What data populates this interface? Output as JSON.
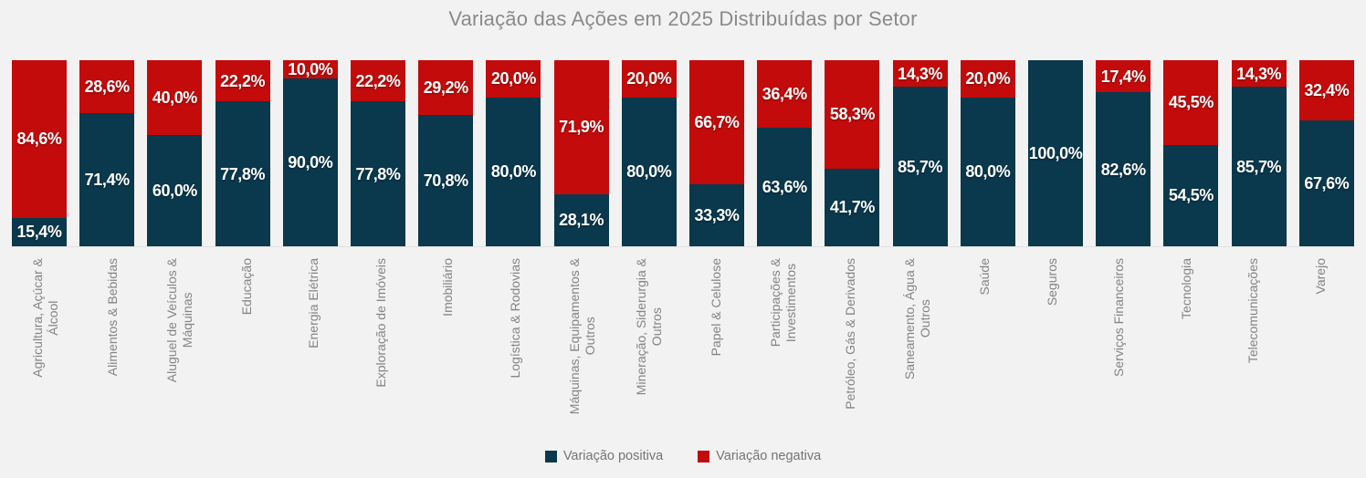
{
  "title": "Variação das Ações em 2025 Distribuídas por Setor",
  "colors": {
    "background": "#f2f2f2",
    "positive": "#0a384c",
    "negative": "#c30b0b",
    "title_text": "#8a8a8a",
    "axis_label_text": "#848484",
    "bar_label_text": "#ffffff",
    "legend_text": "#757575",
    "axis_line": "#e0e0e0"
  },
  "legend": {
    "position": "bottom",
    "items": [
      {
        "label": "Variação positiva",
        "color": "#0a384c"
      },
      {
        "label": "Variação negativa",
        "color": "#c30b0b"
      }
    ]
  },
  "chart_data": {
    "type": "bar",
    "subtype": "stacked-100-percent-column",
    "title": "Variação das Ações em 2025 Distribuídas por Setor",
    "xlabel": "",
    "ylabel": "",
    "ylim": [
      0,
      100
    ],
    "grid": false,
    "legend_position": "bottom",
    "value_format": "pt-BR percent, one decimal",
    "categories": [
      "Agricultura, Açúcar & Álcool",
      "Alimentos & Bebidas",
      "Aluguel de Veículos & Máquinas",
      "Educação",
      "Energia Elétrica",
      "Exploração de Imóveis",
      "Imobiliário",
      "Logística & Rodovias",
      "Máquinas, Equipamentos & Outros",
      "Mineração, Siderurgia & Outros",
      "Papel & Celulose",
      "Participações & Investimentos",
      "Petróleo, Gás & Derivados",
      "Saneamento, Água & Outros",
      "Saúde",
      "Seguros",
      "Serviços Financeiros",
      "Tecnologia",
      "Telecomunicações",
      "Varejo"
    ],
    "category_display": [
      "Agricultura, Açúcar &\nÁlcool",
      "Alimentos & Bebidas",
      "Aluguel de Veículos &\nMáquinas",
      "Educação",
      "Energia Elétrica",
      "Exploração de Imóveis",
      "Imobiliário",
      "Logística & Rodovias",
      "Máquinas, Equipamentos &\nOutros",
      "Mineração, Siderurgia &\nOutros",
      "Papel & Celulose",
      "Participações &\nInvestimentos",
      "Petróleo, Gás & Derivados",
      "Saneamento, Água &\nOutros",
      "Saúde",
      "Seguros",
      "Serviços Financeiros",
      "Tecnologia",
      "Telecomunicações",
      "Varejo"
    ],
    "series": [
      {
        "name": "Variação positiva",
        "color": "#0a384c",
        "values": [
          15.4,
          71.4,
          60.0,
          77.8,
          90.0,
          77.8,
          70.8,
          80.0,
          28.1,
          80.0,
          33.3,
          63.6,
          41.7,
          85.7,
          80.0,
          100.0,
          82.6,
          54.5,
          85.7,
          67.6
        ],
        "labels": [
          "15,4%",
          "71,4%",
          "60,0%",
          "77,8%",
          "90,0%",
          "77,8%",
          "70,8%",
          "80,0%",
          "28,1%",
          "80,0%",
          "33,3%",
          "63,6%",
          "41,7%",
          "85,7%",
          "80,0%",
          "100,0%",
          "82,6%",
          "54,5%",
          "85,7%",
          "67,6%"
        ]
      },
      {
        "name": "Variação negativa",
        "color": "#c30b0b",
        "values": [
          84.6,
          28.6,
          40.0,
          22.2,
          10.0,
          22.2,
          29.2,
          20.0,
          71.9,
          20.0,
          66.7,
          36.4,
          58.3,
          14.3,
          20.0,
          0.0,
          17.4,
          45.5,
          14.3,
          32.4
        ],
        "labels": [
          "84,6%",
          "28,6%",
          "40,0%",
          "22,2%",
          "10,0%",
          "22,2%",
          "29,2%",
          "20,0%",
          "71,9%",
          "20,0%",
          "66,7%",
          "36,4%",
          "58,3%",
          "14,3%",
          "20,0%",
          "",
          "17,4%",
          "45,5%",
          "14,3%",
          "32,4%"
        ]
      }
    ]
  }
}
